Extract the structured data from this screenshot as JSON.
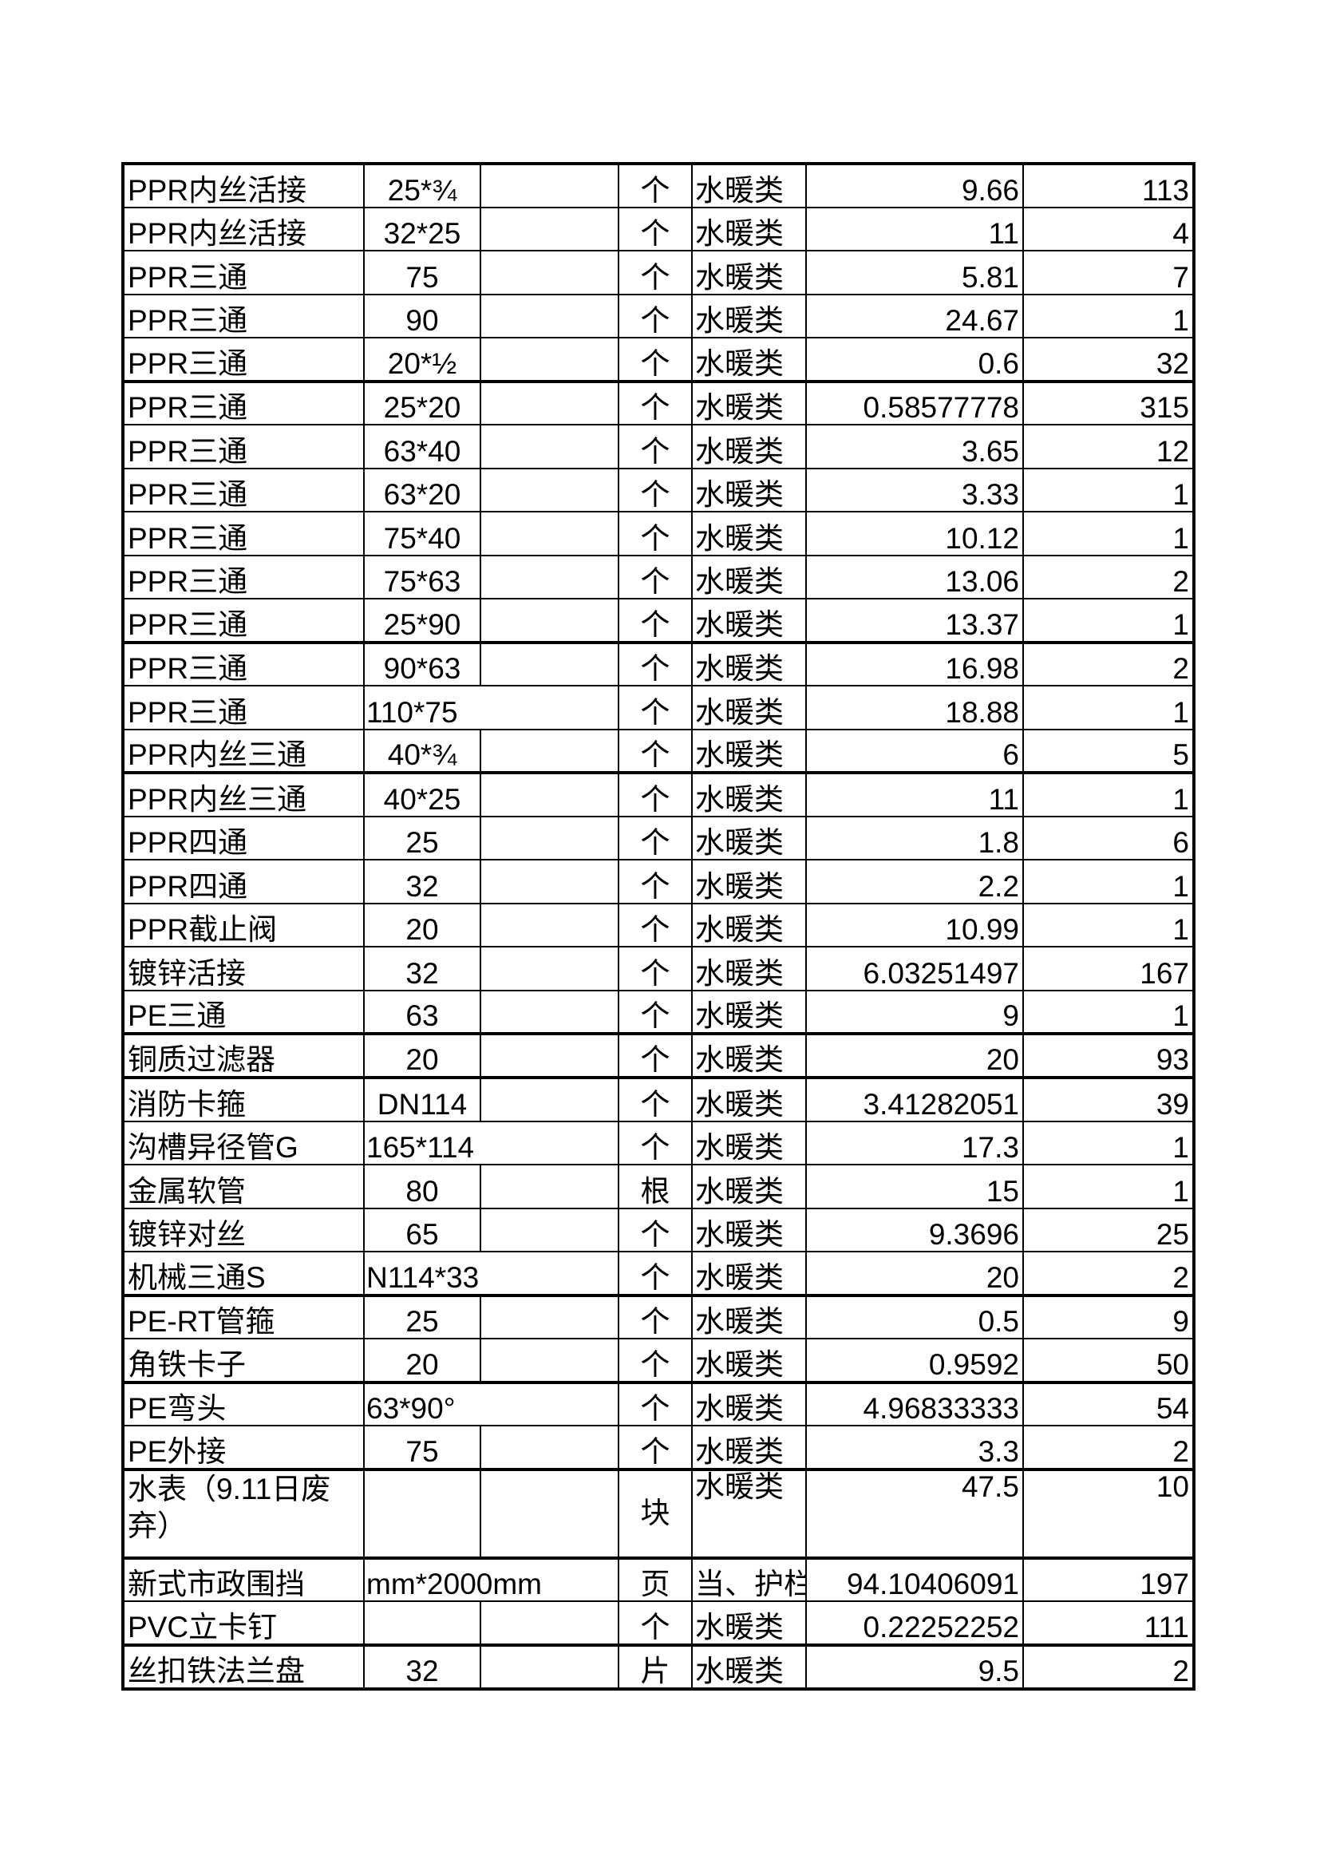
{
  "rows": [
    {
      "name": "PPR内丝活接",
      "spec": "25*¾",
      "unit": "个",
      "category": "水暖类",
      "price": "9.66",
      "qty": "113"
    },
    {
      "name": "PPR内丝活接",
      "spec": "32*25",
      "unit": "个",
      "category": "水暖类",
      "price": "11",
      "qty": "4"
    },
    {
      "name": "PPR三通",
      "spec": "75",
      "unit": "个",
      "category": "水暖类",
      "price": "5.81",
      "qty": "7"
    },
    {
      "name": "PPR三通",
      "spec": "90",
      "unit": "个",
      "category": "水暖类",
      "price": "24.67",
      "qty": "1"
    },
    {
      "name": "PPR三通",
      "spec": "20*½",
      "unit": "个",
      "category": "水暖类",
      "price": "0.6",
      "qty": "32"
    },
    {
      "name": "PPR三通",
      "spec": "25*20",
      "unit": "个",
      "category": "水暖类",
      "price": "0.58577778",
      "qty": "315"
    },
    {
      "name": "PPR三通",
      "spec": "63*40",
      "unit": "个",
      "category": "水暖类",
      "price": "3.65",
      "qty": "12"
    },
    {
      "name": "PPR三通",
      "spec": "63*20",
      "unit": "个",
      "category": "水暖类",
      "price": "3.33",
      "qty": "1"
    },
    {
      "name": "PPR三通",
      "spec": "75*40",
      "unit": "个",
      "category": "水暖类",
      "price": "10.12",
      "qty": "1"
    },
    {
      "name": "PPR三通",
      "spec": "75*63",
      "unit": "个",
      "category": "水暖类",
      "price": "13.06",
      "qty": "2"
    },
    {
      "name": "PPR三通",
      "spec": "25*90",
      "unit": "个",
      "category": "水暖类",
      "price": "13.37",
      "qty": "1"
    },
    {
      "name": "PPR三通",
      "spec": "90*63",
      "unit": "个",
      "category": "水暖类",
      "price": "16.98",
      "qty": "2"
    },
    {
      "name": "PPR三通",
      "spec": "110*75",
      "unit": "个",
      "category": "水暖类",
      "price": "18.88",
      "qty": "1"
    },
    {
      "name": "PPR内丝三通",
      "spec": "40*¾",
      "unit": "个",
      "category": "水暖类",
      "price": "6",
      "qty": "5"
    },
    {
      "name": "PPR内丝三通",
      "spec": "40*25",
      "unit": "个",
      "category": "水暖类",
      "price": "11",
      "qty": "1"
    },
    {
      "name": "PPR四通",
      "spec": "25",
      "unit": "个",
      "category": "水暖类",
      "price": "1.8",
      "qty": "6"
    },
    {
      "name": "PPR四通",
      "spec": "32",
      "unit": "个",
      "category": "水暖类",
      "price": "2.2",
      "qty": "1"
    },
    {
      "name": "PPR截止阀",
      "spec": "20",
      "unit": "个",
      "category": "水暖类",
      "price": "10.99",
      "qty": "1"
    },
    {
      "name": "镀锌活接",
      "spec": "32",
      "unit": "个",
      "category": "水暖类",
      "price": "6.03251497",
      "qty": "167"
    },
    {
      "name": "PE三通",
      "spec": "63",
      "unit": "个",
      "category": "水暖类",
      "price": "9",
      "qty": "1"
    },
    {
      "name": "铜质过滤器",
      "spec": "20",
      "unit": "个",
      "category": "水暖类",
      "price": "20",
      "qty": "93"
    },
    {
      "name": "消防卡箍",
      "spec": "DN114",
      "unit": "个",
      "category": "水暖类",
      "price": "3.41282051",
      "qty": "39"
    },
    {
      "name": "沟槽异径管G",
      "spec": "165*114",
      "unit": "个",
      "category": "水暖类",
      "price": "17.3",
      "qty": "1"
    },
    {
      "name": "金属软管",
      "spec": "80",
      "unit": "根",
      "category": "水暖类",
      "price": "15",
      "qty": "1"
    },
    {
      "name": "镀锌对丝",
      "spec": "65",
      "unit": "个",
      "category": "水暖类",
      "price": "9.3696",
      "qty": "25"
    },
    {
      "name": "机械三通S",
      "spec": "N114*33",
      "unit": "个",
      "category": "水暖类",
      "price": "20",
      "qty": "2"
    },
    {
      "name": "PE-RT管箍",
      "spec": "25",
      "unit": "个",
      "category": "水暖类",
      "price": "0.5",
      "qty": "9"
    },
    {
      "name": "角铁卡子",
      "spec": "20",
      "unit": "个",
      "category": "水暖类",
      "price": "0.9592",
      "qty": "50"
    },
    {
      "name": "PE弯头",
      "spec": "63*90°",
      "unit": "个",
      "category": "水暖类",
      "price": "4.96833333",
      "qty": "54"
    },
    {
      "name": "PE外接",
      "spec": "75",
      "unit": "个",
      "category": "水暖类",
      "price": "3.3",
      "qty": "2"
    },
    {
      "name": "水表（9.11日废弃）",
      "spec": "",
      "unit": "块",
      "category": "水暖类",
      "price": "47.5",
      "qty": "10"
    },
    {
      "name": "新式市政围挡",
      "spec": "mm*2000mm",
      "unit": "页",
      "category": "当、护栏",
      "price": "94.10406091",
      "qty": "197"
    },
    {
      "name": "PVC立卡钉",
      "spec": "",
      "unit": "个",
      "category": "水暖类",
      "price": "0.22252252",
      "qty": "111"
    },
    {
      "name": "丝扣铁法兰盘",
      "spec": "32",
      "unit": "片",
      "category": "水暖类",
      "price": "9.5",
      "qty": "2"
    }
  ]
}
